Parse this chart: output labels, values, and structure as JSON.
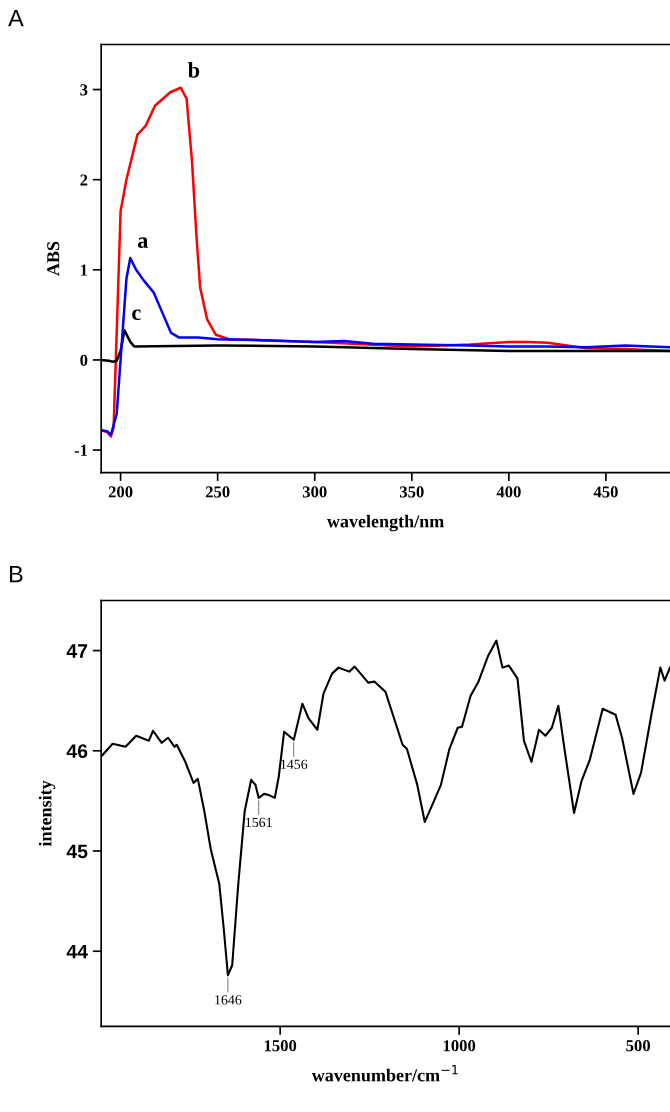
{
  "chart_data": [
    {
      "type": "line",
      "title": "A",
      "xlabel": "wavelength/nm",
      "ylabel": "ABS",
      "xlim": [
        190,
        483
      ],
      "ylim": [
        -1.25,
        3.5
      ],
      "xticks": [
        200,
        250,
        300,
        350,
        400,
        450
      ],
      "yticks": [
        -1,
        0,
        1,
        2,
        3
      ],
      "grid": false,
      "marker": "none",
      "line_style": "solid",
      "series": [
        {
          "color": "#ff0000",
          "x": [
            190,
            193,
            195,
            196.4,
            198,
            200,
            203,
            208.7,
            213,
            217.7,
            225.6,
            231,
            234,
            236.8,
            239,
            241,
            244.6,
            249,
            255.8,
            300,
            350,
            380,
            400,
            410,
            420,
            440,
            460,
            483
          ],
          "values": [
            -0.78,
            -0.8,
            -0.85,
            -0.75,
            0.3,
            1.65,
            2.0,
            2.5,
            2.6,
            2.82,
            2.97,
            3.02,
            2.9,
            2.2,
            1.4,
            0.8,
            0.45,
            0.28,
            0.23,
            0.2,
            0.15,
            0.17,
            0.2,
            0.2,
            0.19,
            0.13,
            0.12,
            0.1
          ]
        },
        {
          "color": "#000000",
          "x": [
            190,
            194,
            196,
            198,
            200,
            202,
            205,
            207,
            250,
            300,
            350,
            400,
            483
          ],
          "values": [
            0,
            -0.01,
            -0.02,
            -0.01,
            0.1,
            0.33,
            0.2,
            0.15,
            0.16,
            0.15,
            0.12,
            0.1,
            0.1
          ]
        },
        {
          "color": "#0000ff",
          "x": [
            190,
            193,
            195,
            198,
            201,
            203,
            205,
            208,
            212,
            217,
            222,
            226,
            230,
            240,
            250,
            270,
            300,
            315,
            330,
            350,
            380,
            400,
            420,
            440,
            460,
            483
          ],
          "values": [
            -0.78,
            -0.79,
            -0.83,
            -0.6,
            0.3,
            0.9,
            1.13,
            1.0,
            0.88,
            0.75,
            0.5,
            0.3,
            0.25,
            0.25,
            0.23,
            0.22,
            0.2,
            0.21,
            0.18,
            0.17,
            0.16,
            0.15,
            0.15,
            0.14,
            0.16,
            0.14
          ]
        }
      ],
      "annotations": [
        {
          "text": "a",
          "x": 205,
          "y": 1.13
        },
        {
          "text": "b",
          "x": 231,
          "y": 3.02
        },
        {
          "text": "c",
          "x": 202,
          "y": 0.33
        }
      ]
    },
    {
      "type": "line",
      "title": "B",
      "xlabel": "wavenumber/cm$^{−1}$",
      "ylabel": "intensity",
      "xlim": [
        2000,
        411
      ],
      "ylim": [
        43.25,
        47.5
      ],
      "xticks": [
        1500,
        1000,
        500
      ],
      "yticks": [
        44,
        45,
        46,
        47
      ],
      "grid": false,
      "marker": "none",
      "line_style": "solid",
      "series": [
        {
          "color": "#000000",
          "x": [
            1998,
            1968,
            1932,
            1902,
            1867,
            1855,
            1831,
            1813,
            1795,
            1789,
            1765,
            1742,
            1730,
            1712,
            1694,
            1670,
            1658,
            1646,
            1634,
            1617,
            1599,
            1581,
            1569,
            1560,
            1545,
            1533,
            1515,
            1504,
            1489,
            1462,
            1438,
            1420,
            1396,
            1379,
            1355,
            1337,
            1307,
            1292,
            1254,
            1236,
            1206,
            1158,
            1146,
            1117,
            1096,
            1075,
            1051,
            1027,
            1004,
            992,
            968,
            946,
            920,
            896,
            879,
            861,
            837,
            819,
            798,
            777,
            759,
            741,
            723,
            705,
            679,
            658,
            635,
            599,
            575,
            563,
            545,
            513,
            492,
            462,
            438,
            426,
            411
          ],
          "values": [
            45.95,
            46.07,
            46.04,
            46.15,
            46.1,
            46.2,
            46.08,
            46.13,
            46.04,
            46.06,
            45.89,
            45.68,
            45.72,
            45.4,
            45.02,
            44.67,
            44.24,
            43.76,
            43.86,
            44.67,
            45.4,
            45.71,
            45.66,
            45.53,
            45.57,
            45.56,
            45.53,
            45.74,
            46.19,
            46.11,
            46.47,
            46.32,
            46.21,
            46.57,
            46.77,
            46.83,
            46.79,
            46.84,
            46.68,
            46.69,
            46.59,
            46.06,
            46.02,
            45.66,
            45.29,
            45.46,
            45.66,
            46.02,
            46.23,
            46.24,
            46.55,
            46.69,
            46.94,
            47.1,
            46.83,
            46.85,
            46.72,
            46.1,
            45.89,
            46.21,
            46.15,
            46.23,
            46.45,
            46.0,
            45.38,
            45.7,
            45.91,
            46.42,
            46.38,
            46.36,
            46.13,
            45.57,
            45.78,
            46.38,
            46.83,
            46.7,
            46.83
          ]
        }
      ],
      "annotations": [
        {
          "text": "1646",
          "x": 1646,
          "y": 43.76
        },
        {
          "text": "1561",
          "x": 1560,
          "y": 45.53
        },
        {
          "text": "1456",
          "x": 1462,
          "y": 46.11
        }
      ]
    }
  ]
}
